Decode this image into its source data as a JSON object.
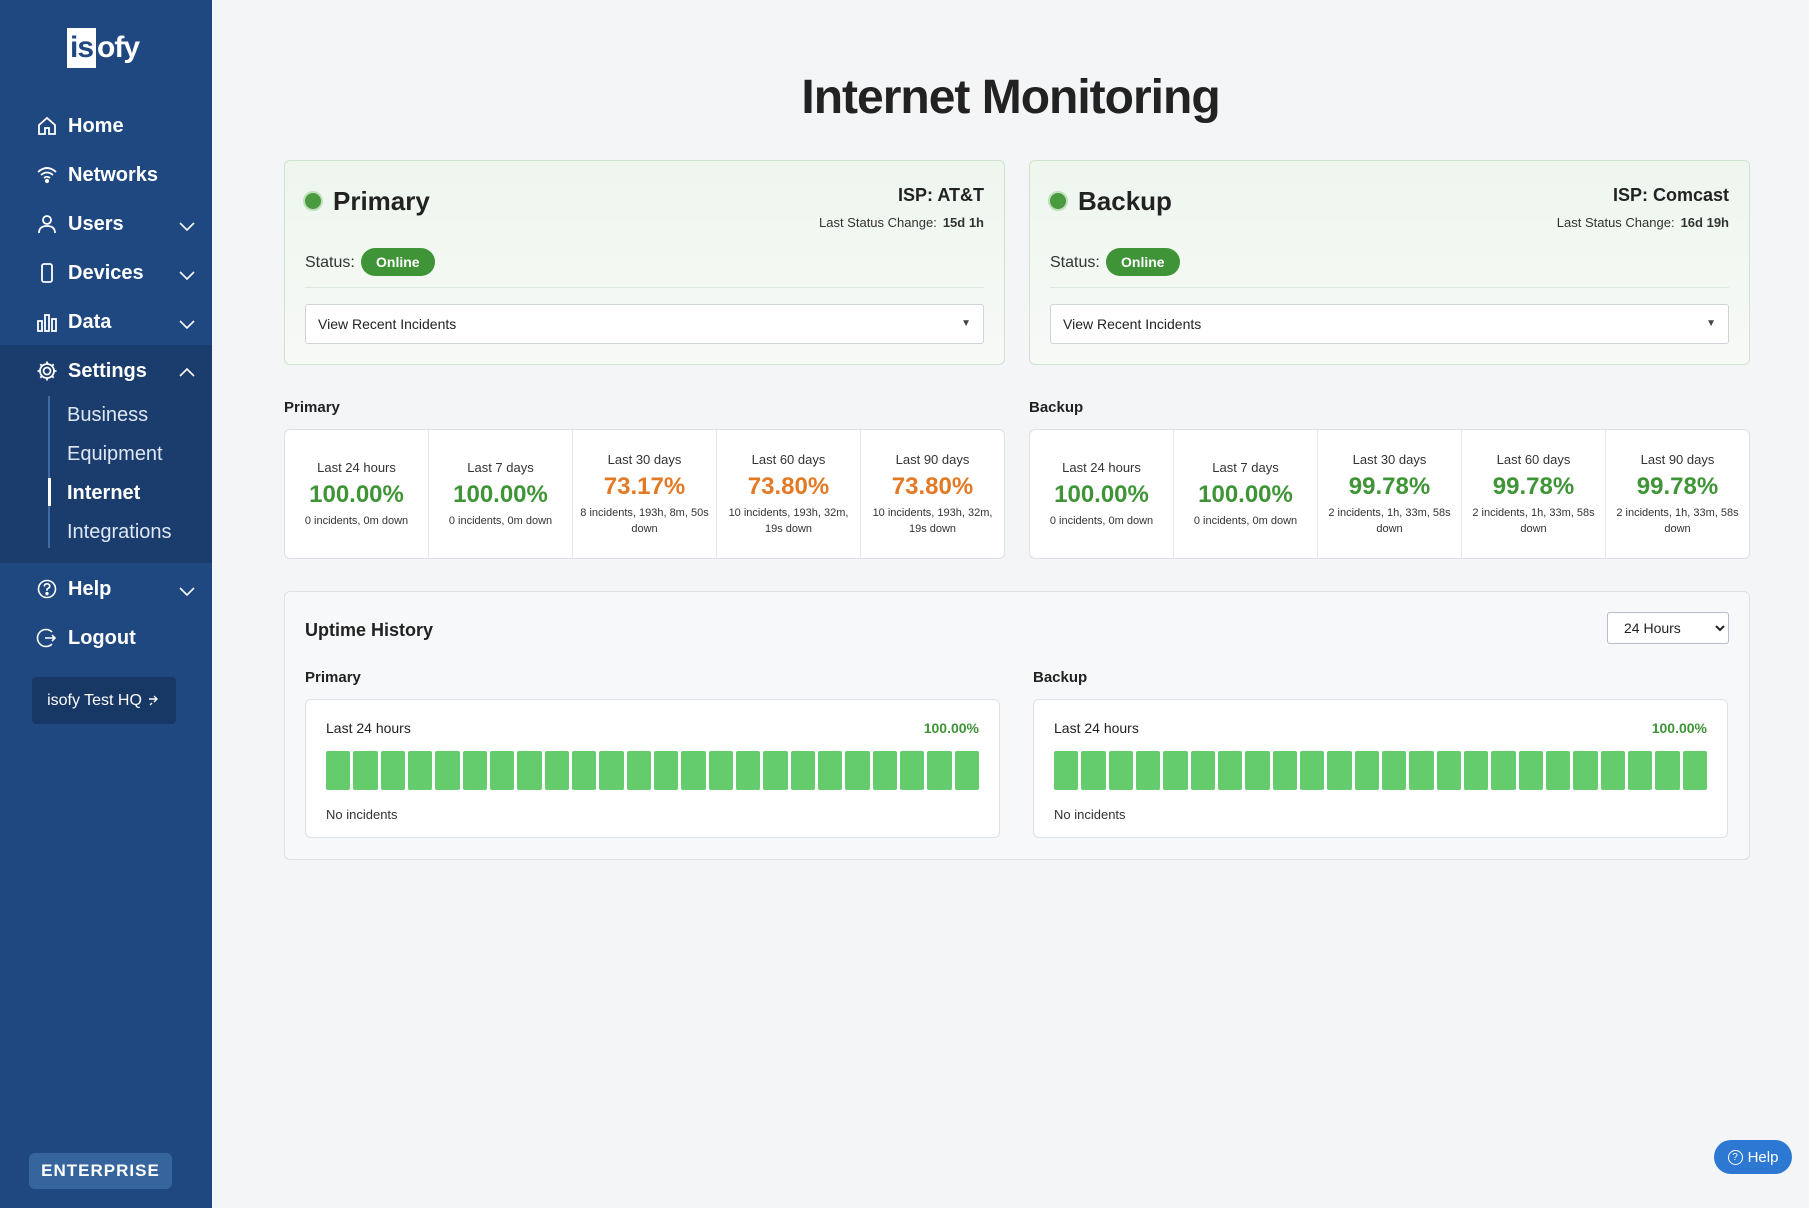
{
  "brand": {
    "logo_box": "is",
    "logo_rest": "ofy"
  },
  "sidebar": {
    "items": [
      {
        "label": "Home",
        "icon": "home-icon"
      },
      {
        "label": "Networks",
        "icon": "wifi-icon"
      },
      {
        "label": "Users",
        "icon": "user-icon"
      },
      {
        "label": "Devices",
        "icon": "device-icon"
      },
      {
        "label": "Data",
        "icon": "bar-chart-icon"
      },
      {
        "label": "Settings",
        "icon": "gear-icon"
      },
      {
        "label": "Help",
        "icon": "question-circle-icon"
      },
      {
        "label": "Logout",
        "icon": "logout-icon"
      }
    ],
    "settings_sub": [
      "Business",
      "Equipment",
      "Internet",
      "Integrations"
    ],
    "active_sub": "Internet",
    "site_button": "isofy Test HQ",
    "plan_badge": "ENTERPRISE"
  },
  "page": {
    "title": "Internet Monitoring"
  },
  "connections": [
    {
      "name": "Primary",
      "isp": "ISP: AT&T",
      "last_status_change_label": "Last Status Change:",
      "last_status_change": "15d 1h",
      "status_label": "Status:",
      "status": "Online",
      "incidents_dropdown": "View Recent Incidents",
      "section_label": "Primary",
      "stats": [
        {
          "period": "Last 24 hours",
          "pct": "100.00%",
          "detail": "0 incidents, 0m down",
          "color": "green"
        },
        {
          "period": "Last 7 days",
          "pct": "100.00%",
          "detail": "0 incidents, 0m down",
          "color": "green"
        },
        {
          "period": "Last 30 days",
          "pct": "73.17%",
          "detail": "8 incidents, 193h, 8m, 50s down",
          "color": "orange"
        },
        {
          "period": "Last 60 days",
          "pct": "73.80%",
          "detail": "10 incidents, 193h, 32m, 19s down",
          "color": "orange"
        },
        {
          "period": "Last 90 days",
          "pct": "73.80%",
          "detail": "10 incidents, 193h, 32m, 19s down",
          "color": "orange"
        }
      ]
    },
    {
      "name": "Backup",
      "isp": "ISP: Comcast",
      "last_status_change_label": "Last Status Change:",
      "last_status_change": "16d 19h",
      "status_label": "Status:",
      "status": "Online",
      "incidents_dropdown": "View Recent Incidents",
      "section_label": "Backup",
      "stats": [
        {
          "period": "Last 24 hours",
          "pct": "100.00%",
          "detail": "0 incidents, 0m down",
          "color": "green"
        },
        {
          "period": "Last 7 days",
          "pct": "100.00%",
          "detail": "0 incidents, 0m down",
          "color": "green"
        },
        {
          "period": "Last 30 days",
          "pct": "99.78%",
          "detail": "2 incidents, 1h, 33m, 58s down",
          "color": "green"
        },
        {
          "period": "Last 60 days",
          "pct": "99.78%",
          "detail": "2 incidents, 1h, 33m, 58s down",
          "color": "green"
        },
        {
          "period": "Last 90 days",
          "pct": "99.78%",
          "detail": "2 incidents, 1h, 33m, 58s down",
          "color": "green"
        }
      ]
    }
  ],
  "history": {
    "title": "Uptime History",
    "range_selected": "24 Hours",
    "panels": [
      {
        "label": "Primary",
        "period": "Last 24 hours",
        "pct": "100.00%",
        "incidents": "No incidents",
        "bar_count": 24
      },
      {
        "label": "Backup",
        "period": "Last 24 hours",
        "pct": "100.00%",
        "incidents": "No incidents",
        "bar_count": 24
      }
    ]
  },
  "help_widget": {
    "label": "Help"
  },
  "colors": {
    "sidebar": "#1f4780",
    "online": "#3f9437",
    "bar": "#64cc6c",
    "warning": "#e27a25",
    "help": "#2d78d2"
  }
}
